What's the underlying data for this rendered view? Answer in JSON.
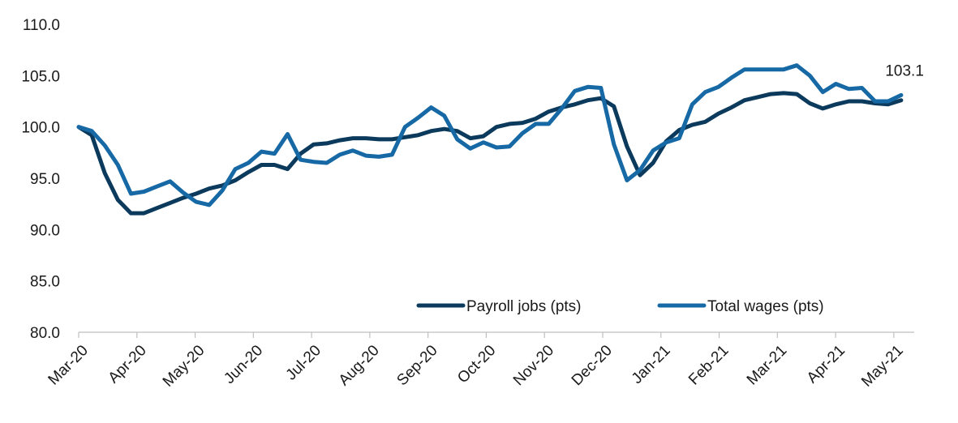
{
  "chart_data": {
    "type": "line",
    "title": "",
    "xlabel": "",
    "ylabel": "",
    "ylim": [
      80,
      110
    ],
    "yticks": [
      "80.0",
      "85.0",
      "90.0",
      "95.0",
      "100.0",
      "105.0",
      "110.0"
    ],
    "x_tick_labels": [
      "Mar-20",
      "Apr-20",
      "May-20",
      "Jun-20",
      "Jul-20",
      "Aug-20",
      "Sep-20",
      "Oct-20",
      "Nov-20",
      "Dec-20",
      "Jan-21",
      "Feb-21",
      "Mar-21",
      "Apr-21",
      "May-21"
    ],
    "grid": false,
    "legend_position": "bottom-right",
    "series": [
      {
        "name": "Payroll jobs (pts)",
        "color": "#0b3a5c",
        "values": [
          100.0,
          99.2,
          95.5,
          92.9,
          91.6,
          91.6,
          92.1,
          92.6,
          93.1,
          93.5,
          94.0,
          94.3,
          94.8,
          95.6,
          96.3,
          96.3,
          95.9,
          97.4,
          98.3,
          98.4,
          98.7,
          98.9,
          98.9,
          98.8,
          98.8,
          99.0,
          99.2,
          99.6,
          99.8,
          99.6,
          98.9,
          99.1,
          100.0,
          100.3,
          100.4,
          100.8,
          101.5,
          101.9,
          102.2,
          102.6,
          102.8,
          102.0,
          98.1,
          95.3,
          96.5,
          98.6,
          99.7,
          100.2,
          100.5,
          101.3,
          101.9,
          102.6,
          102.9,
          103.2,
          103.3,
          103.2,
          102.3,
          101.8,
          102.2,
          102.5,
          102.5,
          102.3,
          102.2,
          102.6
        ]
      },
      {
        "name": "Total wages (pts)",
        "color": "#1769a5",
        "values": [
          100.0,
          99.6,
          98.2,
          96.3,
          93.5,
          93.7,
          94.2,
          94.7,
          93.6,
          92.7,
          92.4,
          93.8,
          95.9,
          96.5,
          97.6,
          97.4,
          99.3,
          96.8,
          96.6,
          96.5,
          97.3,
          97.7,
          97.2,
          97.1,
          97.3,
          100.0,
          100.9,
          101.9,
          101.1,
          98.8,
          97.9,
          98.5,
          98.0,
          98.1,
          99.4,
          100.3,
          100.3,
          101.8,
          103.5,
          103.9,
          103.8,
          98.3,
          94.8,
          95.8,
          97.7,
          98.5,
          98.9,
          102.2,
          103.4,
          103.9,
          104.8,
          105.6,
          105.6,
          105.6,
          105.6,
          106.0,
          105.0,
          103.4,
          104.2,
          103.7,
          103.8,
          102.5,
          102.5,
          103.1
        ]
      }
    ],
    "annotations": [
      {
        "series": "Total wages (pts)",
        "point_index": 63,
        "text": "103.1"
      }
    ]
  }
}
